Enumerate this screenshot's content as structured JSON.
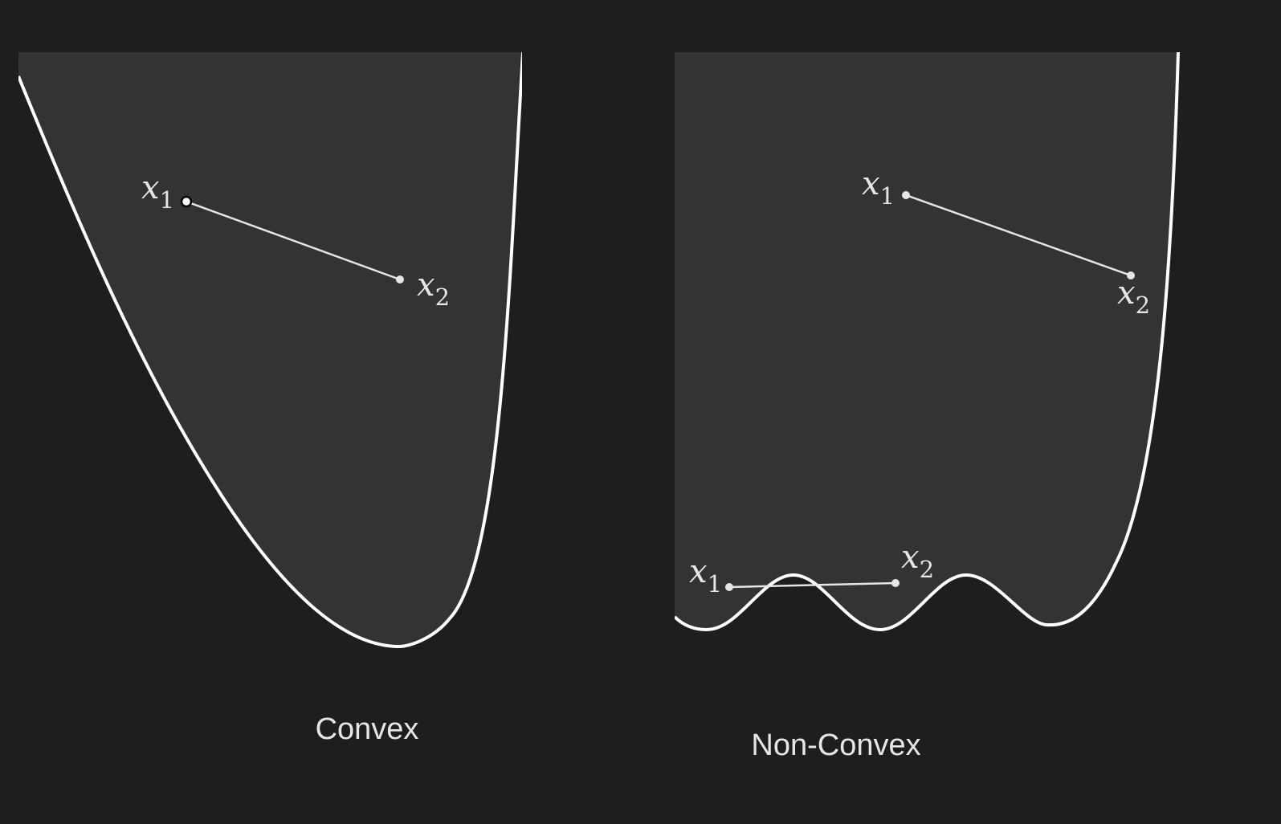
{
  "colors": {
    "background": "#1e1e1e",
    "region": "#333333",
    "curve": "#ffffff",
    "segment": "#e6e6e6",
    "text": "#e6e6e6"
  },
  "panels": [
    {
      "id": "convex",
      "caption": "Convex",
      "segments": [
        {
          "p1": {
            "var": "x",
            "sub": "1"
          },
          "p2": {
            "var": "x",
            "sub": "2"
          }
        }
      ]
    },
    {
      "id": "non-convex",
      "caption": "Non-Convex",
      "segments": [
        {
          "p1": {
            "var": "x",
            "sub": "1"
          },
          "p2": {
            "var": "x",
            "sub": "2"
          }
        },
        {
          "p1": {
            "var": "x",
            "sub": "1"
          },
          "p2": {
            "var": "x",
            "sub": "2"
          }
        }
      ]
    }
  ]
}
